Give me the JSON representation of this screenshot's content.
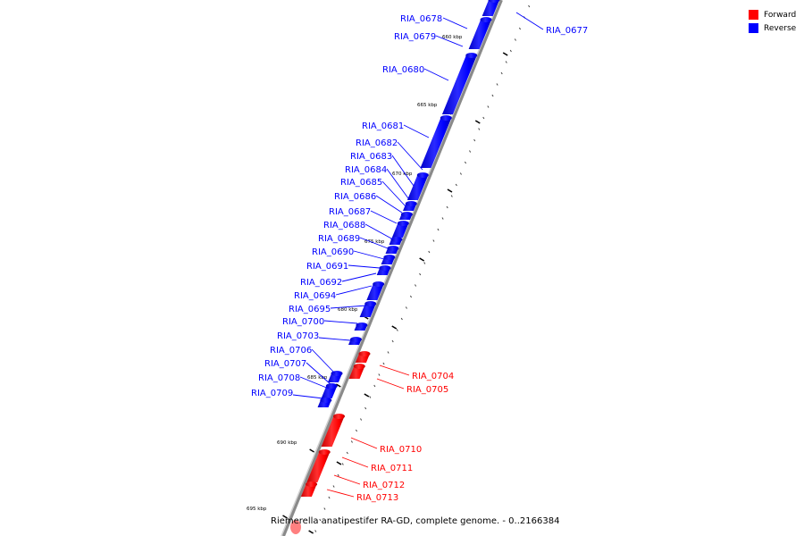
{
  "legend": {
    "forward_label": "Forward",
    "reverse_label": "Reverse",
    "forward_color": "#ff0000",
    "reverse_color": "#0000ff"
  },
  "caption": "Riemerella anatipestifer RA-GD, complete genome. - 0..2166384",
  "ruler_labels": [
    "660 kbp",
    "665 kbp",
    "670 kbp",
    "675 kbp",
    "680 kbp",
    "685 kbp",
    "690 kbp",
    "695 kbp"
  ],
  "genes": [
    {
      "name": "RIA_0677",
      "strand": "reverse"
    },
    {
      "name": "RIA_0678",
      "strand": "reverse"
    },
    {
      "name": "RIA_0679",
      "strand": "reverse"
    },
    {
      "name": "RIA_0680",
      "strand": "reverse"
    },
    {
      "name": "RIA_0681",
      "strand": "reverse"
    },
    {
      "name": "RIA_0682",
      "strand": "reverse"
    },
    {
      "name": "RIA_0683",
      "strand": "reverse"
    },
    {
      "name": "RIA_0684",
      "strand": "reverse"
    },
    {
      "name": "RIA_0685",
      "strand": "reverse"
    },
    {
      "name": "RIA_0686",
      "strand": "reverse"
    },
    {
      "name": "RIA_0687",
      "strand": "reverse"
    },
    {
      "name": "RIA_0688",
      "strand": "reverse"
    },
    {
      "name": "RIA_0689",
      "strand": "reverse"
    },
    {
      "name": "RIA_0690",
      "strand": "reverse"
    },
    {
      "name": "RIA_0691",
      "strand": "reverse"
    },
    {
      "name": "RIA_0692",
      "strand": "reverse"
    },
    {
      "name": "RIA_0694",
      "strand": "reverse"
    },
    {
      "name": "RIA_0695",
      "strand": "reverse"
    },
    {
      "name": "RIA_0700",
      "strand": "reverse"
    },
    {
      "name": "RIA_0703",
      "strand": "reverse"
    },
    {
      "name": "RIA_0704",
      "strand": "forward"
    },
    {
      "name": "RIA_0705",
      "strand": "forward"
    },
    {
      "name": "RIA_0706",
      "strand": "reverse"
    },
    {
      "name": "RIA_0707",
      "strand": "reverse"
    },
    {
      "name": "RIA_0708",
      "strand": "reverse"
    },
    {
      "name": "RIA_0709",
      "strand": "reverse"
    },
    {
      "name": "RIA_0710",
      "strand": "forward"
    },
    {
      "name": "RIA_0711",
      "strand": "forward"
    },
    {
      "name": "RIA_0712",
      "strand": "forward"
    },
    {
      "name": "RIA_0713",
      "strand": "forward"
    }
  ]
}
